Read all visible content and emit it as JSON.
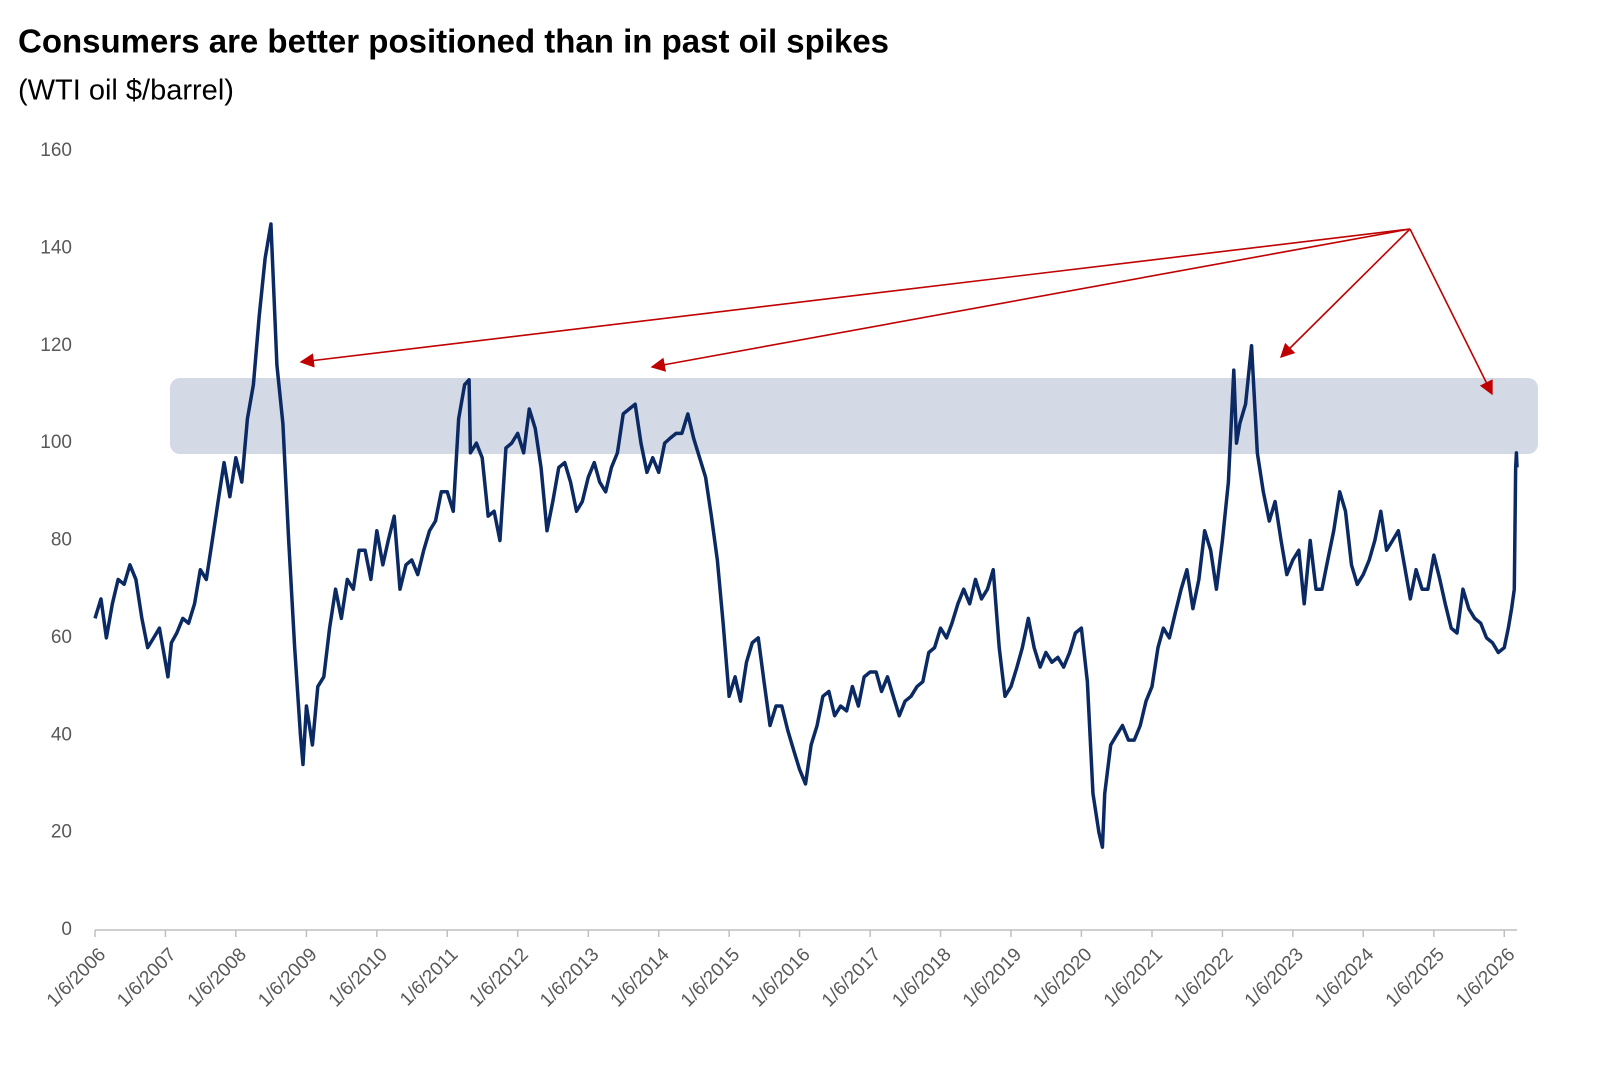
{
  "chart_data": {
    "type": "line",
    "title": "Consumers are better positioned than in past oil spikes",
    "subtitle": "(WTI oil $/barrel)",
    "x": [
      "1/6/2006",
      "2/6/2006",
      "3/6/2006",
      "4/6/2006",
      "5/6/2006",
      "6/6/2006",
      "7/6/2006",
      "8/6/2006",
      "9/6/2006",
      "10/6/2006",
      "11/6/2006",
      "12/6/2006",
      "1/6/2007",
      "1/19/2007",
      "2/6/2007",
      "3/6/2007",
      "4/6/2007",
      "5/6/2007",
      "6/6/2007",
      "7/6/2007",
      "8/6/2007",
      "9/6/2007",
      "10/6/2007",
      "11/6/2007",
      "12/6/2007",
      "1/6/2008",
      "2/6/2008",
      "3/6/2008",
      "4/6/2008",
      "5/6/2008",
      "6/6/2008",
      "7/6/2008",
      "8/6/2008",
      "9/6/2008",
      "10/6/2008",
      "11/6/2008",
      "12/6/2008",
      "12/19/2008",
      "1/6/2009",
      "2/6/2009",
      "3/6/2009",
      "4/6/2009",
      "5/6/2009",
      "6/6/2009",
      "7/6/2009",
      "8/6/2009",
      "9/6/2009",
      "10/6/2009",
      "11/6/2009",
      "12/6/2009",
      "1/6/2010",
      "2/6/2010",
      "3/6/2010",
      "4/6/2010",
      "5/6/2010",
      "6/6/2010",
      "7/6/2010",
      "8/6/2010",
      "9/6/2010",
      "10/6/2010",
      "11/6/2010",
      "12/6/2010",
      "1/6/2011",
      "2/6/2011",
      "3/6/2011",
      "4/6/2011",
      "4/29/2011",
      "5/6/2011",
      "6/6/2011",
      "7/6/2011",
      "8/6/2011",
      "9/6/2011",
      "10/6/2011",
      "11/6/2011",
      "12/6/2011",
      "1/6/2012",
      "2/6/2012",
      "3/6/2012",
      "4/6/2012",
      "5/6/2012",
      "6/6/2012",
      "7/6/2012",
      "8/6/2012",
      "9/6/2012",
      "10/6/2012",
      "11/6/2012",
      "12/6/2012",
      "1/6/2013",
      "2/6/2013",
      "3/6/2013",
      "4/6/2013",
      "5/6/2013",
      "6/6/2013",
      "7/6/2013",
      "8/6/2013",
      "9/6/2013",
      "10/6/2013",
      "11/6/2013",
      "12/6/2013",
      "1/6/2014",
      "2/6/2014",
      "3/6/2014",
      "4/6/2014",
      "5/6/2014",
      "6/6/2014",
      "7/6/2014",
      "8/6/2014",
      "9/6/2014",
      "10/6/2014",
      "11/6/2014",
      "12/6/2014",
      "1/6/2015",
      "2/6/2015",
      "3/6/2015",
      "4/6/2015",
      "5/6/2015",
      "6/6/2015",
      "7/6/2015",
      "8/6/2015",
      "9/6/2015",
      "10/6/2015",
      "11/6/2015",
      "12/6/2015",
      "1/6/2016",
      "2/6/2016",
      "3/6/2016",
      "4/6/2016",
      "5/6/2016",
      "6/6/2016",
      "7/6/2016",
      "8/6/2016",
      "9/6/2016",
      "10/6/2016",
      "11/6/2016",
      "12/6/2016",
      "1/6/2017",
      "2/6/2017",
      "3/6/2017",
      "4/6/2017",
      "5/6/2017",
      "6/6/2017",
      "7/6/2017",
      "8/6/2017",
      "9/6/2017",
      "10/6/2017",
      "11/6/2017",
      "12/6/2017",
      "1/6/2018",
      "2/6/2018",
      "3/6/2018",
      "4/6/2018",
      "5/6/2018",
      "6/6/2018",
      "7/6/2018",
      "8/6/2018",
      "9/6/2018",
      "10/6/2018",
      "11/6/2018",
      "12/6/2018",
      "1/6/2019",
      "2/6/2019",
      "3/6/2019",
      "4/6/2019",
      "5/6/2019",
      "6/6/2019",
      "7/6/2019",
      "8/6/2019",
      "9/6/2019",
      "10/6/2019",
      "11/6/2019",
      "12/6/2019",
      "1/6/2020",
      "2/6/2020",
      "3/6/2020",
      "4/6/2020",
      "4/24/2020",
      "5/6/2020",
      "6/6/2020",
      "7/6/2020",
      "8/6/2020",
      "9/6/2020",
      "10/6/2020",
      "11/6/2020",
      "12/6/2020",
      "1/6/2021",
      "2/6/2021",
      "3/6/2021",
      "4/6/2021",
      "5/6/2021",
      "6/6/2021",
      "7/6/2021",
      "8/6/2021",
      "9/6/2021",
      "10/6/2021",
      "11/6/2021",
      "12/6/2021",
      "1/6/2022",
      "2/6/2022",
      "3/6/2022",
      "3/20/2022",
      "4/6/2022",
      "5/6/2022",
      "6/6/2022",
      "7/6/2022",
      "8/6/2022",
      "9/6/2022",
      "10/6/2022",
      "11/6/2022",
      "12/6/2022",
      "1/6/2023",
      "2/6/2023",
      "3/6/2023",
      "4/6/2023",
      "5/6/2023",
      "6/6/2023",
      "7/6/2023",
      "8/6/2023",
      "9/6/2023",
      "10/6/2023",
      "11/6/2023",
      "12/6/2023",
      "1/6/2024",
      "2/6/2024",
      "3/6/2024",
      "4/6/2024",
      "5/6/2024",
      "6/6/2024",
      "7/6/2024",
      "8/6/2024",
      "9/6/2024",
      "10/6/2024",
      "11/6/2024",
      "12/6/2024",
      "1/6/2025",
      "2/6/2025",
      "3/6/2025",
      "4/6/2025",
      "5/6/2025",
      "6/6/2025",
      "7/6/2025",
      "8/6/2025",
      "9/6/2025",
      "10/6/2025",
      "11/6/2025",
      "12/6/2025",
      "1/6/2026",
      "1/27/2026",
      "2/13/2026",
      "2/27/2026",
      "3/6/2026",
      "3/10/2026",
      "3/13/2026"
    ],
    "series": [
      {
        "name": "WTI",
        "color": "#0b2a63",
        "values": [
          64,
          68,
          60,
          67,
          72,
          71,
          75,
          72,
          64,
          58,
          60,
          62,
          55,
          52,
          59,
          61,
          64,
          63,
          67,
          74,
          72,
          80,
          88,
          96,
          89,
          97,
          92,
          105,
          112,
          126,
          138,
          145,
          116,
          104,
          80,
          58,
          40,
          34,
          46,
          38,
          50,
          52,
          62,
          70,
          64,
          72,
          70,
          78,
          78,
          72,
          82,
          75,
          80,
          85,
          70,
          75,
          76,
          73,
          78,
          82,
          84,
          90,
          90,
          86,
          105,
          112,
          113,
          98,
          100,
          97,
          85,
          86,
          80,
          99,
          100,
          102,
          98,
          107,
          103,
          95,
          82,
          88,
          95,
          96,
          92,
          86,
          88,
          93,
          96,
          92,
          90,
          95,
          98,
          106,
          107,
          108,
          100,
          94,
          97,
          94,
          100,
          101,
          102,
          102,
          106,
          101,
          97,
          93,
          85,
          76,
          63,
          48,
          52,
          47,
          55,
          59,
          60,
          51,
          42,
          46,
          46,
          41,
          37,
          33,
          30,
          38,
          42,
          48,
          49,
          44,
          46,
          45,
          50,
          46,
          52,
          53,
          53,
          49,
          52,
          48,
          44,
          47,
          48,
          50,
          51,
          57,
          58,
          62,
          60,
          63,
          67,
          70,
          67,
          72,
          68,
          70,
          74,
          58,
          48,
          50,
          54,
          58,
          64,
          58,
          54,
          57,
          55,
          56,
          54,
          57,
          61,
          62,
          51,
          28,
          20,
          17,
          28,
          38,
          40,
          42,
          39,
          39,
          42,
          47,
          50,
          58,
          62,
          60,
          65,
          70,
          74,
          66,
          72,
          82,
          78,
          70,
          80,
          92,
          115,
          100,
          104,
          108,
          120,
          98,
          90,
          84,
          88,
          80,
          73,
          76,
          78,
          67,
          80,
          70,
          70,
          76,
          82,
          90,
          86,
          75,
          71,
          73,
          76,
          80,
          86,
          78,
          80,
          82,
          75,
          68,
          74,
          70,
          70,
          77,
          72,
          67,
          62,
          61,
          70,
          66,
          64,
          63,
          60,
          59,
          57,
          58,
          62,
          66,
          70,
          95,
          98,
          95
        ]
      }
    ],
    "xlim": [
      "1/6/2006",
      "3/13/2026"
    ],
    "xticks": [
      "1/6/2006",
      "1/6/2007",
      "1/6/2008",
      "1/6/2009",
      "1/6/2010",
      "1/6/2011",
      "1/6/2012",
      "1/6/2013",
      "1/6/2014",
      "1/6/2015",
      "1/6/2016",
      "1/6/2017",
      "1/6/2018",
      "1/6/2019",
      "1/6/2020",
      "1/6/2021",
      "1/6/2022",
      "1/6/2023",
      "1/6/2024",
      "1/6/2025",
      "1/6/2026"
    ],
    "ylim": [
      0,
      160
    ],
    "yticks": [
      0,
      20,
      40,
      60,
      80,
      100,
      120,
      140,
      160
    ],
    "grid": false
  }
}
